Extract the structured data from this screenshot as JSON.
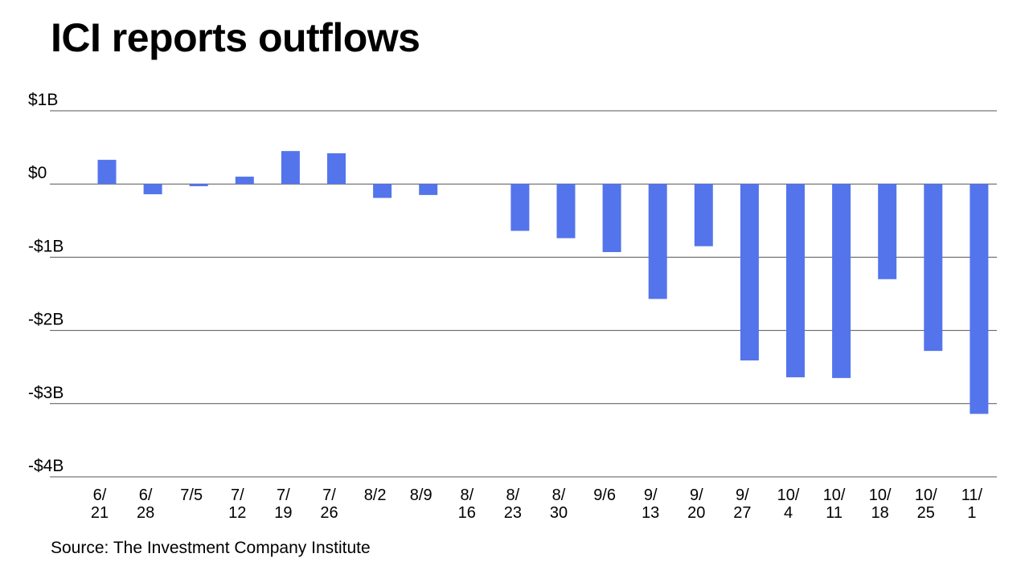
{
  "header": {
    "title": "ICI reports outflows"
  },
  "footer": {
    "source": "Source: The Investment Company Institute"
  },
  "colors": {
    "bar": "#5474ec",
    "grid": "#555555"
  },
  "chart_data": {
    "type": "bar",
    "title": "ICI reports outflows",
    "xlabel": "",
    "ylabel": "",
    "ylim": [
      -4,
      1
    ],
    "y_unit": "billions of dollars",
    "grid": true,
    "y_ticks": [
      {
        "value": 1,
        "label": "$1B"
      },
      {
        "value": 0,
        "label": "$0"
      },
      {
        "value": -1,
        "label": "-$1B"
      },
      {
        "value": -2,
        "label": "-$2B"
      },
      {
        "value": -3,
        "label": "-$3B"
      },
      {
        "value": -4,
        "label": "-$4B"
      }
    ],
    "categories": [
      [
        "6/",
        "21"
      ],
      [
        "6/",
        "28"
      ],
      [
        "7/5"
      ],
      [
        "7/",
        "12"
      ],
      [
        "7/",
        "19"
      ],
      [
        "7/",
        "26"
      ],
      [
        "8/2"
      ],
      [
        "8/9"
      ],
      [
        "8/",
        "16"
      ],
      [
        "8/",
        "23"
      ],
      [
        "8/",
        "30"
      ],
      [
        "9/6"
      ],
      [
        "9/",
        "13"
      ],
      [
        "9/",
        "20"
      ],
      [
        "9/",
        "27"
      ],
      [
        "10/",
        "4"
      ],
      [
        "10/",
        "11"
      ],
      [
        "10/",
        "18"
      ],
      [
        "10/",
        "25"
      ],
      [
        "11/",
        "1"
      ]
    ],
    "values": [
      0.33,
      -0.14,
      -0.03,
      0.1,
      0.45,
      0.42,
      -0.19,
      -0.15,
      0.0,
      -0.64,
      -0.74,
      -0.93,
      -1.57,
      -0.85,
      -2.41,
      -2.64,
      -2.65,
      -1.3,
      -2.28,
      -3.14
    ]
  }
}
